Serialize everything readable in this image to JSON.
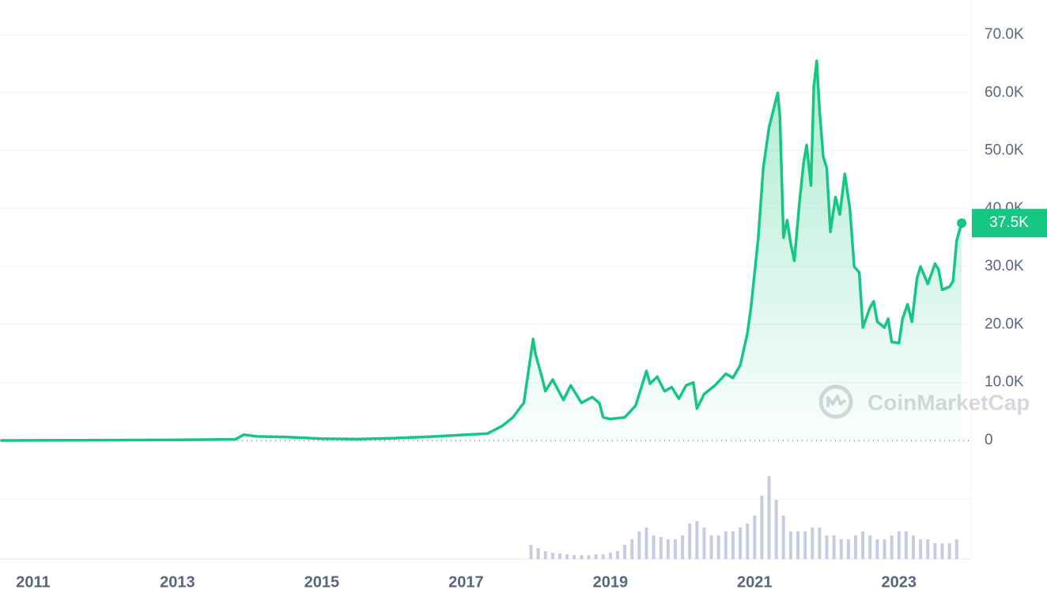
{
  "chart_data": {
    "type": "line",
    "xlim": [
      2010.54,
      2024.0
    ],
    "xticks": [
      2011,
      2013,
      2015,
      2017,
      2019,
      2021,
      2023
    ],
    "ylim": [
      0,
      76000
    ],
    "yticks": [
      0,
      {
        "value": 10000,
        "label": "10.0K"
      },
      {
        "value": 20000,
        "label": "20.0K"
      },
      {
        "value": 30000,
        "label": "30.0K"
      },
      {
        "value": 40000,
        "label": "40.0K"
      },
      {
        "value": 50000,
        "label": "50.0K"
      },
      {
        "value": 60000,
        "label": "60.0K"
      },
      {
        "value": 70000,
        "label": "70.0K"
      }
    ],
    "grid": true,
    "series": [
      {
        "color": "#16c784",
        "x": [
          2010.55,
          2013.0,
          2013.8,
          2013.92,
          2014.1,
          2014.5,
          2015.0,
          2015.5,
          2016.0,
          2016.5,
          2017.0,
          2017.3,
          2017.5,
          2017.65,
          2017.8,
          2017.93,
          2017.96,
          2018.05,
          2018.1,
          2018.2,
          2018.35,
          2018.45,
          2018.6,
          2018.75,
          2018.85,
          2018.9,
          2019.0,
          2019.2,
          2019.35,
          2019.5,
          2019.55,
          2019.65,
          2019.75,
          2019.85,
          2019.95,
          2020.05,
          2020.15,
          2020.2,
          2020.3,
          2020.45,
          2020.6,
          2020.7,
          2020.8,
          2020.9,
          2020.95,
          2021.05,
          2021.12,
          2021.2,
          2021.28,
          2021.32,
          2021.35,
          2021.4,
          2021.45,
          2021.5,
          2021.55,
          2021.62,
          2021.68,
          2021.72,
          2021.78,
          2021.82,
          2021.86,
          2021.9,
          2021.95,
          2022.0,
          2022.05,
          2022.12,
          2022.18,
          2022.25,
          2022.32,
          2022.38,
          2022.45,
          2022.5,
          2022.6,
          2022.65,
          2022.7,
          2022.8,
          2022.85,
          2022.9,
          2023.0,
          2023.05,
          2023.12,
          2023.18,
          2023.25,
          2023.3,
          2023.4,
          2023.5,
          2023.55,
          2023.6,
          2023.7,
          2023.75,
          2023.8,
          2023.87
        ],
        "values": [
          0,
          100,
          200,
          1000,
          700,
          600,
          300,
          250,
          400,
          650,
          1000,
          1200,
          2500,
          4000,
          6500,
          17500,
          15000,
          11000,
          8500,
          10500,
          7000,
          9500,
          6500,
          7500,
          6400,
          4000,
          3700,
          4000,
          6000,
          12000,
          9800,
          11000,
          8500,
          9200,
          7200,
          9500,
          10000,
          5500,
          8000,
          9500,
          11500,
          10800,
          13000,
          18500,
          23000,
          35000,
          47000,
          54000,
          58000,
          60000,
          56000,
          35000,
          38000,
          34000,
          31000,
          41000,
          48000,
          51000,
          44000,
          61000,
          65500,
          57000,
          49000,
          47000,
          36000,
          42000,
          39000,
          46000,
          40000,
          30000,
          29000,
          19500,
          23000,
          24000,
          20500,
          19500,
          21000,
          17000,
          16800,
          21000,
          23500,
          20500,
          28000,
          30000,
          27000,
          30500,
          29500,
          26000,
          26500,
          27500,
          34500,
          37500
        ]
      }
    ],
    "volume": {
      "color": "#c7cbe0",
      "ylim": [
        0,
        150
      ],
      "x": [
        2017.9,
        2018.0,
        2018.1,
        2018.2,
        2018.3,
        2018.4,
        2018.5,
        2018.6,
        2018.7,
        2018.8,
        2018.9,
        2019.0,
        2019.1,
        2019.2,
        2019.3,
        2019.4,
        2019.5,
        2019.6,
        2019.7,
        2019.8,
        2019.9,
        2020.0,
        2020.1,
        2020.2,
        2020.3,
        2020.4,
        2020.5,
        2020.6,
        2020.7,
        2020.8,
        2020.9,
        2021.0,
        2021.1,
        2021.2,
        2021.3,
        2021.4,
        2021.5,
        2021.6,
        2021.7,
        2021.8,
        2021.9,
        2022.0,
        2022.1,
        2022.2,
        2022.3,
        2022.4,
        2022.5,
        2022.6,
        2022.7,
        2022.8,
        2022.9,
        2023.0,
        2023.1,
        2023.2,
        2023.3,
        2023.4,
        2023.5,
        2023.6,
        2023.7,
        2023.8
      ],
      "values": [
        18,
        14,
        10,
        8,
        7,
        6,
        5,
        5,
        5,
        6,
        6,
        8,
        10,
        18,
        25,
        35,
        40,
        30,
        28,
        25,
        25,
        30,
        45,
        48,
        40,
        30,
        30,
        35,
        35,
        40,
        45,
        55,
        80,
        105,
        75,
        55,
        35,
        35,
        35,
        40,
        40,
        30,
        30,
        25,
        25,
        30,
        35,
        30,
        25,
        25,
        30,
        35,
        35,
        30,
        25,
        25,
        20,
        20,
        20,
        25
      ]
    },
    "current_price": 37500,
    "current_price_label": "37.5K",
    "watermark": "CoinMarketCap"
  }
}
